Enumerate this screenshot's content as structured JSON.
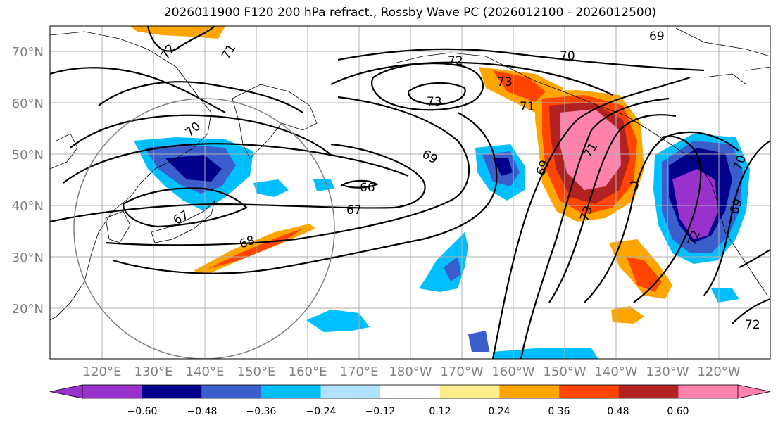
{
  "title": "2026011900 F120 200 hPa refract., Rossby Wave PC (2026012100 - 2026012500)",
  "map": {
    "lat_labels": [
      "70°N",
      "60°N",
      "50°N",
      "40°N",
      "30°N",
      "20°N"
    ],
    "lon_labels": [
      "120°E",
      "130°E",
      "140°E",
      "150°E",
      "160°E",
      "170°E",
      "180°W",
      "170°W",
      "160°W",
      "150°W",
      "140°W",
      "130°W",
      "120°W"
    ],
    "contour_labels": [
      {
        "text": "72"
      },
      {
        "text": "71"
      },
      {
        "text": "72"
      },
      {
        "text": "70"
      },
      {
        "text": "69"
      },
      {
        "text": "73"
      },
      {
        "text": "73"
      },
      {
        "text": "71"
      },
      {
        "text": "70"
      },
      {
        "text": "69"
      },
      {
        "text": "66"
      },
      {
        "text": "67"
      },
      {
        "text": "67"
      },
      {
        "text": "68"
      },
      {
        "text": "71"
      },
      {
        "text": "69"
      },
      {
        "text": "73"
      },
      {
        "text": "72"
      },
      {
        "text": "70"
      },
      {
        "text": "69"
      },
      {
        "text": "72"
      }
    ]
  },
  "colorbar": {
    "tick_labels": [
      "−0.60",
      "−0.48",
      "−0.36",
      "−0.24",
      "−0.12",
      "0.12",
      "0.24",
      "0.36",
      "0.48",
      "0.60"
    ],
    "colors": [
      "#9932cc",
      "#00008b",
      "#3a5fcd",
      "#00bfff",
      "#b0e2ff",
      "#ffffff",
      "#ffec8b",
      "#ffa500",
      "#ff4500",
      "#b22222",
      "#ff82ab"
    ]
  }
}
